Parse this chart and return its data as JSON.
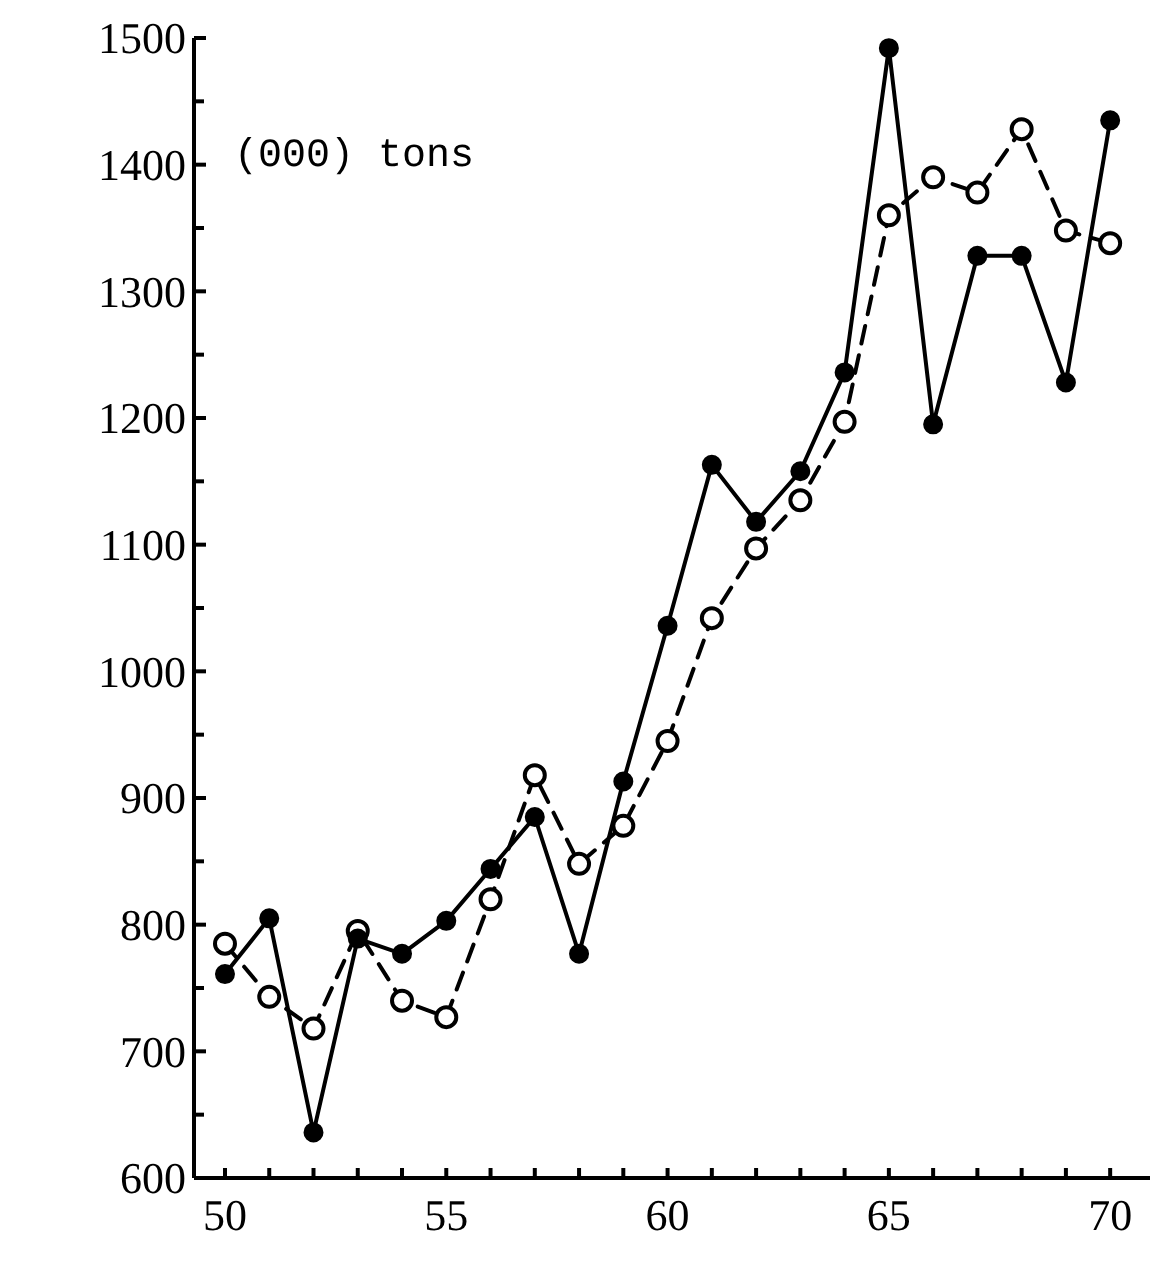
{
  "chart_data": {
    "type": "line",
    "ylabel": "(000) tons",
    "x": [
      50,
      51,
      52,
      53,
      54,
      55,
      56,
      57,
      58,
      59,
      60,
      61,
      62,
      63,
      64,
      65,
      66,
      67,
      68,
      69,
      70
    ],
    "series": [
      {
        "color": "#000000",
        "line_style": "solid",
        "marker": "circle",
        "values": [
          761,
          805,
          636,
          789,
          777,
          803,
          844,
          885,
          777,
          913,
          1036,
          1163,
          1118,
          1158,
          1236,
          1492,
          1195,
          1328,
          1328,
          1228,
          1435
        ]
      },
      {
        "color": "#000000",
        "line_style": "dashed",
        "marker": "circle",
        "values": [
          785,
          743,
          718,
          795,
          740,
          727,
          820,
          918,
          848,
          878,
          945,
          1042,
          1097,
          1135,
          1197,
          1360,
          1390,
          1378,
          1428,
          1348,
          1338
        ]
      }
    ],
    "xlim": [
      49.3,
      70.9
    ],
    "ylim": [
      600,
      1500
    ],
    "xticks": [
      50,
      {
        "value": 51,
        "label": null
      },
      {
        "value": 52,
        "label": null
      },
      {
        "value": 53,
        "label": null
      },
      {
        "value": 54,
        "label": null
      },
      55,
      {
        "value": 56,
        "label": null
      },
      {
        "value": 57,
        "label": null
      },
      {
        "value": 58,
        "label": null
      },
      {
        "value": 59,
        "label": null
      },
      60,
      {
        "value": 61,
        "label": null
      },
      {
        "value": 62,
        "label": null
      },
      {
        "value": 63,
        "label": null
      },
      {
        "value": 64,
        "label": null
      },
      65,
      {
        "value": 66,
        "label": null
      },
      {
        "value": 67,
        "label": null
      },
      {
        "value": 68,
        "label": null
      },
      {
        "value": 69,
        "label": null
      },
      70
    ],
    "yticks": [
      600,
      {
        "value": 650,
        "label": null
      },
      700,
      {
        "value": 750,
        "label": null
      },
      800,
      {
        "value": 850,
        "label": null
      },
      900,
      {
        "value": 950,
        "label": null
      },
      1000,
      {
        "value": 1050,
        "label": null
      },
      1100,
      {
        "value": 1150,
        "label": null
      },
      1200,
      {
        "value": 1250,
        "label": null
      },
      1300,
      {
        "value": 1350,
        "label": null
      },
      1400,
      {
        "value": 1450,
        "label": null
      },
      1500
    ],
    "grid": false
  }
}
